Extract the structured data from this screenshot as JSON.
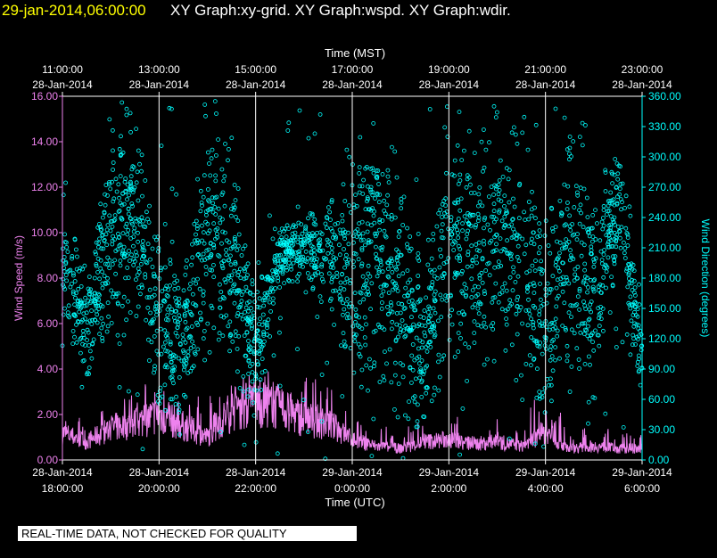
{
  "header": {
    "timestamp": "29-jan-2014,06:00:00",
    "graphs": "XY Graph:xy-grid.  XY Graph:wspd.  XY Graph:wdir."
  },
  "notice": "REAL-TIME DATA, NOT CHECKED FOR QUALITY",
  "colors": {
    "timestamp": "#ffff00",
    "header_text": "#ffffff",
    "wspd": "#ee82ee",
    "wdir": "#00ffff",
    "grid": "#ffffff",
    "axis_text": "#ffffff"
  },
  "chart_data": {
    "type": "scatter",
    "top_axis": {
      "label": "Time (MST)",
      "ticks": [
        {
          "time": "11:00:00",
          "date": "28-Jan-2014"
        },
        {
          "time": "13:00:00",
          "date": "28-Jan-2014"
        },
        {
          "time": "15:00:00",
          "date": "28-Jan-2014"
        },
        {
          "time": "17:00:00",
          "date": "28-Jan-2014"
        },
        {
          "time": "19:00:00",
          "date": "28-Jan-2014"
        },
        {
          "time": "21:00:00",
          "date": "28-Jan-2014"
        },
        {
          "time": "23:00:00",
          "date": "28-Jan-2014"
        }
      ]
    },
    "bottom_axis": {
      "label": "Time (UTC)",
      "range": [
        "2014-01-28T18:00:00Z",
        "2014-01-29T06:00:00Z"
      ],
      "ticks": [
        {
          "date": "28-Jan-2014",
          "time": "18:00:00"
        },
        {
          "date": "28-Jan-2014",
          "time": "20:00:00"
        },
        {
          "date": "28-Jan-2014",
          "time": "22:00:00"
        },
        {
          "date": "29-Jan-2014",
          "time": "0:00:00"
        },
        {
          "date": "29-Jan-2014",
          "time": "2:00:00"
        },
        {
          "date": "29-Jan-2014",
          "time": "4:00:00"
        },
        {
          "date": "29-Jan-2014",
          "time": "6:00:00"
        }
      ]
    },
    "left_axis": {
      "label": "Wind Speed (m/s)",
      "range": [
        0,
        16
      ],
      "ticks": [
        "0.00",
        "2.00",
        "4.00",
        "6.00",
        "8.00",
        "10.00",
        "12.00",
        "14.00",
        "16.00"
      ]
    },
    "right_axis": {
      "label": "Wind Direction (degrees)",
      "range": [
        0,
        360
      ],
      "ticks": [
        "0.00",
        "30.00",
        "60.00",
        "90.00",
        "120.00",
        "150.00",
        "180.00",
        "210.00",
        "240.00",
        "270.00",
        "300.00",
        "330.00",
        "360.00"
      ]
    },
    "grid": "vertical lines at each 2-hour tick",
    "series": [
      {
        "axis": "left",
        "style": "line",
        "unit": "m/s",
        "hours_utc": [
          18,
          18.5,
          19,
          19.5,
          20,
          20.5,
          21,
          21.5,
          22,
          22.5,
          23,
          23.5,
          24,
          24.5,
          25,
          25.5,
          26,
          26.5,
          27,
          27.5,
          28,
          28.5,
          29,
          29.5,
          30
        ],
        "mean": [
          1.2,
          0.8,
          1.4,
          1.6,
          2.0,
          1.5,
          1.0,
          2.2,
          2.5,
          2.3,
          1.8,
          1.6,
          0.9,
          0.6,
          0.5,
          0.8,
          0.9,
          0.7,
          0.8,
          0.6,
          1.2,
          0.5,
          0.6,
          0.5,
          0.5
        ],
        "peak": [
          2.0,
          1.8,
          2.8,
          3.5,
          3.8,
          3.2,
          2.8,
          3.6,
          3.9,
          4.0,
          3.9,
          3.3,
          2.0,
          1.6,
          1.3,
          2.0,
          2.2,
          1.6,
          1.8,
          1.9,
          3.3,
          1.5,
          1.5,
          1.3,
          1.2
        ]
      },
      {
        "axis": "right",
        "style": "circles",
        "unit": "degrees",
        "hours_utc": [
          18,
          18.5,
          19,
          19.5,
          20,
          20.5,
          21,
          21.5,
          22,
          22.5,
          23,
          23.5,
          24,
          24.5,
          25,
          25.5,
          26,
          26.5,
          27,
          27.5,
          28,
          28.5,
          29,
          29.5,
          30
        ],
        "center": [
          200,
          120,
          230,
          240,
          130,
          120,
          220,
          200,
          110,
          205,
          210,
          200,
          180,
          210,
          170,
          110,
          230,
          200,
          230,
          200,
          130,
          210,
          160,
          260,
          100
        ],
        "spread": [
          60,
          40,
          80,
          70,
          70,
          60,
          80,
          80,
          50,
          25,
          30,
          40,
          90,
          100,
          100,
          60,
          90,
          90,
          80,
          90,
          80,
          90,
          70,
          40,
          50
        ]
      }
    ]
  }
}
